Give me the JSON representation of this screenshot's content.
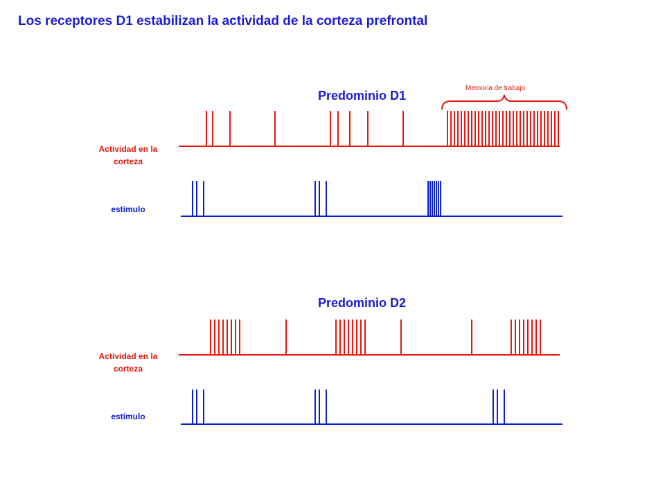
{
  "title": "Los receptores D1 estabilizan la actividad de la corteza prefrontal",
  "colors": {
    "title": "#1a1ad6",
    "activity": "#e8160c",
    "stimulus": "#0a1ed2"
  },
  "panels": [
    {
      "id": "d1",
      "title": "Predominio D1",
      "activity_label": "Actividad en la corteza",
      "stimulus_label": "estímulo",
      "annotation": "Memoria de trabajo",
      "activity_spikes": [
        298,
        307,
        332,
        397,
        477,
        488,
        505,
        531,
        582,
        646,
        651,
        656,
        661,
        666,
        671,
        676,
        681,
        686,
        691,
        696,
        701,
        706,
        711,
        716,
        721,
        726,
        731,
        736,
        741,
        746,
        751,
        756,
        761,
        766,
        771,
        776,
        781,
        786,
        791,
        796,
        801,
        806
      ],
      "stimulus_spikes": [
        278,
        284,
        294,
        455,
        461,
        471,
        618,
        621,
        624,
        627,
        630,
        633,
        636
      ]
    },
    {
      "id": "d2",
      "title": "Predominio D2",
      "activity_label": "Actividad en la corteza",
      "stimulus_label": "estímulo",
      "activity_spikes": [
        304,
        310,
        316,
        322,
        328,
        334,
        340,
        346,
        413,
        485,
        491,
        497,
        503,
        509,
        515,
        521,
        527,
        579,
        681,
        738,
        744,
        750,
        756,
        762,
        768,
        774,
        780
      ],
      "stimulus_spikes": [
        278,
        284,
        294,
        455,
        461,
        471,
        712,
        718,
        728
      ]
    }
  ]
}
